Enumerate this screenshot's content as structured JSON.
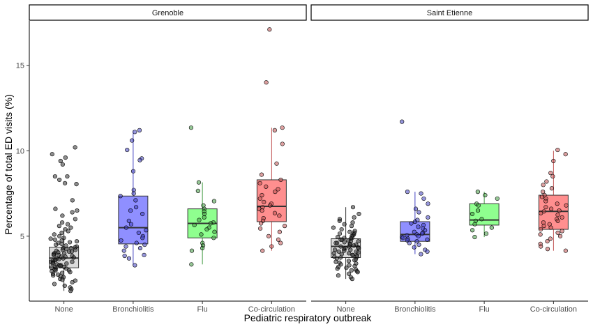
{
  "chart_data": {
    "type": "box",
    "title": "",
    "xlabel": "Pediatric respiratory outbreak",
    "ylabel": "Percentage of total ED visits (%)",
    "yticks": [
      5,
      10,
      15
    ],
    "ylim": [
      1.2,
      17.6
    ],
    "grid": false,
    "legend": "none",
    "categories": [
      "None",
      "Bronchiolitis",
      "Flu",
      "Co-circulation"
    ],
    "colors": {
      "None": "#bdbdbd",
      "Bronchiolitis": "#3333ff",
      "Flu": "#33ff33",
      "Co-circulation": "#ff3333"
    },
    "point_colors": {
      "None": "#303030",
      "Bronchiolitis": "#4040c0",
      "Flu": "#409940",
      "Co-circulation": "#c05050"
    },
    "panels": [
      {
        "name": "Grenoble",
        "boxes": [
          {
            "category": "None",
            "q1": 3.15,
            "median": 3.72,
            "q3": 4.35,
            "whisker_low": 1.8,
            "whisker_high": 5.5,
            "points": [
              10.2,
              9.8,
              9.6,
              9.4,
              9.2,
              8.5,
              8.5,
              8.3,
              8.1,
              8.05,
              7.1,
              6.6,
              6.5,
              6.4,
              6.2,
              6.0,
              5.8,
              5.7,
              5.6,
              5.5,
              5.4,
              5.3,
              5.2,
              5.1,
              5.0,
              4.9,
              4.85,
              4.8,
              4.75,
              4.7,
              4.65,
              4.6,
              4.55,
              4.5,
              4.45,
              4.4,
              4.35,
              4.3,
              4.3,
              4.25,
              4.2,
              4.2,
              4.15,
              4.1,
              4.1,
              4.05,
              4.0,
              4.0,
              3.95,
              3.9,
              3.9,
              3.85,
              3.8,
              3.8,
              3.75,
              3.7,
              3.7,
              3.65,
              3.6,
              3.6,
              3.55,
              3.5,
              3.5,
              3.45,
              3.4,
              3.4,
              3.35,
              3.3,
              3.3,
              3.25,
              3.2,
              3.2,
              3.15,
              3.1,
              3.1,
              3.05,
              3.0,
              3.0,
              2.95,
              2.9,
              2.85,
              2.8,
              2.75,
              2.7,
              2.65,
              2.6,
              2.5,
              2.45,
              2.4,
              2.3,
              2.2,
              2.1,
              2.0,
              1.9,
              1.8
            ]
          },
          {
            "category": "Bronchiolitis",
            "q1": 4.55,
            "median": 5.5,
            "q3": 7.35,
            "whisker_low": 3.3,
            "whisker_high": 11.2,
            "points": [
              11.2,
              11.1,
              10.6,
              10.05,
              9.55,
              9.45,
              8.8,
              7.7,
              7.5,
              7.35,
              7.1,
              6.7,
              6.5,
              6.3,
              5.9,
              5.7,
              5.5,
              5.35,
              5.2,
              5.0,
              4.9,
              4.75,
              4.6,
              4.5,
              4.4,
              4.3,
              4.15,
              3.9,
              3.85,
              3.7,
              3.3
            ]
          },
          {
            "category": "Flu",
            "q1": 4.9,
            "median": 5.75,
            "q3": 6.6,
            "whisker_low": 3.35,
            "whisker_high": 8.15,
            "points": [
              11.35,
              8.15,
              7.65,
              7.05,
              6.8,
              6.6,
              6.45,
              6.3,
              6.1,
              5.95,
              5.8,
              5.75,
              5.65,
              5.5,
              5.4,
              5.25,
              5.1,
              4.9,
              4.6,
              4.45,
              4.3,
              4.15,
              3.35
            ]
          },
          {
            "category": "Co-circulation",
            "q1": 5.85,
            "median": 6.75,
            "q3": 8.3,
            "whisker_low": 4.15,
            "whisker_high": 11.35,
            "points": [
              17.1,
              14.0,
              11.35,
              11.2,
              10.4,
              9.25,
              8.6,
              8.3,
              8.1,
              7.9,
              7.75,
              7.6,
              7.4,
              7.2,
              7.0,
              6.9,
              6.8,
              6.7,
              6.6,
              6.5,
              6.35,
              6.2,
              6.05,
              5.9,
              5.75,
              5.6,
              5.45,
              5.25,
              5.0,
              4.8,
              4.6,
              4.4,
              4.15
            ]
          }
        ]
      },
      {
        "name": "Saint Etienne",
        "boxes": [
          {
            "category": "None",
            "q1": 3.75,
            "median": 4.4,
            "q3": 4.85,
            "whisker_low": 2.5,
            "whisker_high": 6.7,
            "points": [
              6.7,
              6.3,
              6.1,
              6.0,
              5.9,
              5.8,
              5.7,
              5.6,
              5.5,
              5.4,
              5.3,
              5.25,
              5.2,
              5.15,
              5.1,
              5.05,
              5.0,
              4.95,
              4.9,
              4.9,
              4.85,
              4.8,
              4.8,
              4.75,
              4.7,
              4.7,
              4.65,
              4.6,
              4.6,
              4.55,
              4.5,
              4.5,
              4.45,
              4.4,
              4.4,
              4.35,
              4.3,
              4.3,
              4.25,
              4.2,
              4.2,
              4.15,
              4.1,
              4.1,
              4.05,
              4.0,
              4.0,
              3.95,
              3.9,
              3.9,
              3.85,
              3.8,
              3.8,
              3.75,
              3.7,
              3.65,
              3.6,
              3.55,
              3.5,
              3.45,
              3.4,
              3.35,
              3.3,
              3.25,
              3.2,
              3.15,
              3.1,
              3.05,
              3.0,
              2.95,
              2.9,
              2.8,
              2.7,
              2.6,
              2.5
            ]
          },
          {
            "category": "Bronchiolitis",
            "q1": 4.7,
            "median": 5.1,
            "q3": 5.85,
            "whisker_low": 3.95,
            "whisker_high": 7.6,
            "points": [
              11.7,
              7.6,
              7.5,
              7.2,
              6.9,
              6.6,
              6.4,
              6.1,
              5.95,
              5.85,
              5.75,
              5.65,
              5.55,
              5.45,
              5.35,
              5.25,
              5.2,
              5.15,
              5.1,
              5.05,
              5.0,
              4.95,
              4.9,
              4.85,
              4.8,
              4.75,
              4.7,
              4.6,
              4.5,
              4.35,
              4.2,
              4.1,
              3.95
            ]
          },
          {
            "category": "Flu",
            "q1": 5.65,
            "median": 5.95,
            "q3": 6.9,
            "whisker_low": 4.95,
            "whisker_high": 7.6,
            "points": [
              7.6,
              7.4,
              7.2,
              6.9,
              6.8,
              6.5,
              6.3,
              6.0,
              5.9,
              5.7,
              5.5,
              5.35,
              5.15,
              4.95
            ]
          },
          {
            "category": "Co-circulation",
            "q1": 5.4,
            "median": 6.45,
            "q3": 7.4,
            "whisker_low": 4.15,
            "whisker_high": 10.0,
            "points": [
              10.05,
              9.8,
              9.4,
              8.7,
              8.5,
              8.2,
              8.0,
              7.8,
              7.6,
              7.4,
              7.3,
              7.2,
              7.05,
              6.9,
              6.8,
              6.7,
              6.6,
              6.5,
              6.45,
              6.35,
              6.25,
              6.1,
              6.0,
              5.9,
              5.8,
              5.7,
              5.6,
              5.5,
              5.4,
              5.3,
              5.2,
              5.1,
              5.0,
              4.85,
              4.7,
              4.55,
              4.4,
              4.25,
              4.15
            ]
          }
        ]
      }
    ]
  }
}
